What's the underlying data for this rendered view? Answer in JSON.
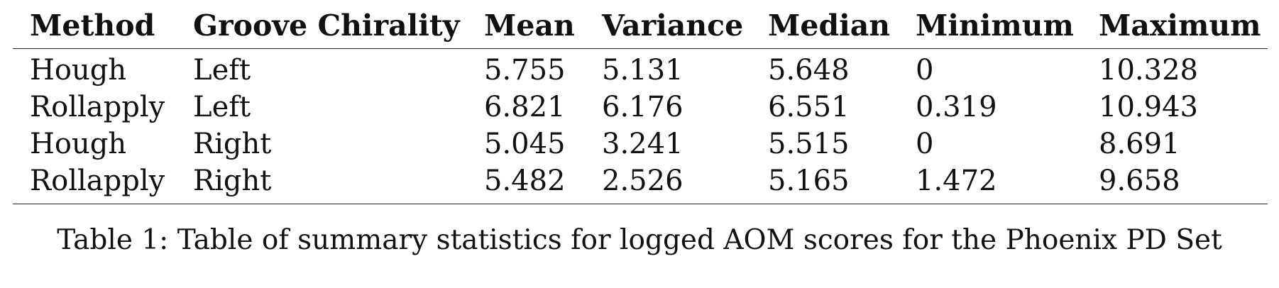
{
  "table": {
    "columns": [
      "Method",
      "Groove Chirality",
      "Mean",
      "Variance",
      "Median",
      "Minimum",
      "Maximum"
    ],
    "rows": [
      [
        "Hough",
        "Left",
        "5.755",
        "5.131",
        "5.648",
        "0",
        "10.328"
      ],
      [
        "Rollapply",
        "Left",
        "6.821",
        "6.176",
        "6.551",
        "0.319",
        "10.943"
      ],
      [
        "Hough",
        "Right",
        "5.045",
        "3.241",
        "5.515",
        "0",
        "8.691"
      ],
      [
        "Rollapply",
        "Right",
        "5.482",
        "2.526",
        "5.165",
        "1.472",
        "9.658"
      ]
    ]
  },
  "caption": "Table 1: Table of summary statistics for logged AOM scores for the Phoenix PD Set"
}
